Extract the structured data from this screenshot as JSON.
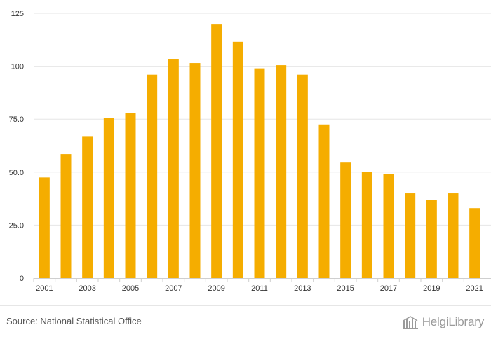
{
  "chart_data": {
    "type": "bar",
    "title": "",
    "xlabel": "",
    "ylabel": "",
    "ylim": [
      0,
      125
    ],
    "y_ticks": [
      "0",
      "25.0",
      "50.0",
      "75.0",
      "100",
      "125"
    ],
    "y_tick_values": [
      0,
      25,
      50,
      75,
      100,
      125
    ],
    "grid": true,
    "bar_color": "#f5ad00",
    "categories": [
      "2001",
      "2002",
      "2003",
      "2004",
      "2005",
      "2006",
      "2007",
      "2008",
      "2009",
      "2010",
      "2011",
      "2012",
      "2013",
      "2014",
      "2015",
      "2016",
      "2017",
      "2018",
      "2019",
      "2020",
      "2021"
    ],
    "x_tick_labels": [
      "2001",
      "",
      "2003",
      "",
      "2005",
      "",
      "2007",
      "",
      "2009",
      "",
      "2011",
      "",
      "2013",
      "",
      "2015",
      "",
      "2017",
      "",
      "2019",
      "",
      "2021"
    ],
    "values": [
      47.5,
      58.5,
      67.0,
      75.5,
      78.0,
      96.0,
      103.5,
      101.5,
      120.0,
      111.5,
      99.0,
      100.5,
      96.0,
      72.5,
      54.5,
      50.0,
      49.0,
      40.0,
      37.0,
      40.0,
      33.0
    ]
  },
  "footer": {
    "source": "Source: National Statistical Office",
    "brand": "HelgiLibrary"
  },
  "icons": {
    "brand_icon": "library-building-icon"
  }
}
